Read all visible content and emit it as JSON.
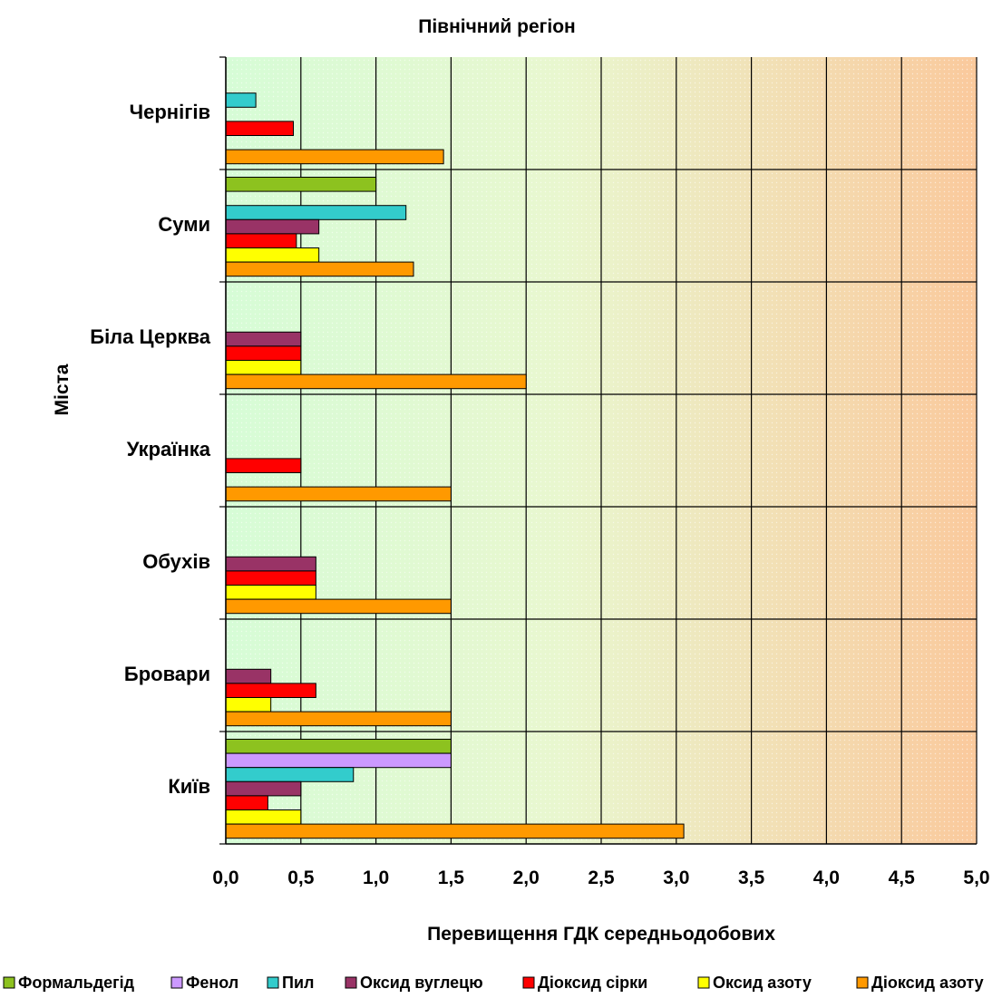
{
  "chart_data": {
    "type": "bar",
    "orientation": "horizontal",
    "title": "Північний регіон",
    "xlabel": "Перевищення ГДК середньодобових",
    "ylabel": "Міста",
    "xlim": [
      0,
      5
    ],
    "x_ticks": [
      "0,0",
      "0,5",
      "1,0",
      "1,5",
      "2,0",
      "2,5",
      "3,0",
      "3,5",
      "4,0",
      "4,5",
      "5,0"
    ],
    "grid": true,
    "legend_position": "bottom",
    "categories": [
      "Чернігів",
      "Суми",
      "Біла Церква",
      "Українка",
      "Обухів",
      "Бровари",
      "Київ"
    ],
    "series": [
      {
        "name": "Формальдегід",
        "color": "#8dc21f",
        "values": [
          0,
          1.0,
          0,
          0,
          0,
          0,
          1.5
        ]
      },
      {
        "name": "Фенол",
        "color": "#cc99ff",
        "values": [
          0,
          0,
          0,
          0,
          0,
          0,
          1.5
        ]
      },
      {
        "name": "Пил",
        "color": "#33cccc",
        "values": [
          0.2,
          1.2,
          0,
          0,
          0,
          0,
          0.85
        ]
      },
      {
        "name": "Оксид вуглецю",
        "color": "#993366",
        "values": [
          0,
          0.62,
          0.5,
          0,
          0.6,
          0.3,
          0.5
        ]
      },
      {
        "name": "Діоксид сірки",
        "color": "#ff0000",
        "values": [
          0.45,
          0.47,
          0.5,
          0.5,
          0.6,
          0.6,
          0.28
        ]
      },
      {
        "name": "Оксид азоту",
        "color": "#ffff00",
        "values": [
          0,
          0.62,
          0.5,
          0,
          0.6,
          0.3,
          0.5
        ]
      },
      {
        "name": "Діоксид азоту",
        "color": "#ff9900",
        "values": [
          1.45,
          1.25,
          2.0,
          1.5,
          1.5,
          1.5,
          3.05
        ]
      }
    ]
  }
}
